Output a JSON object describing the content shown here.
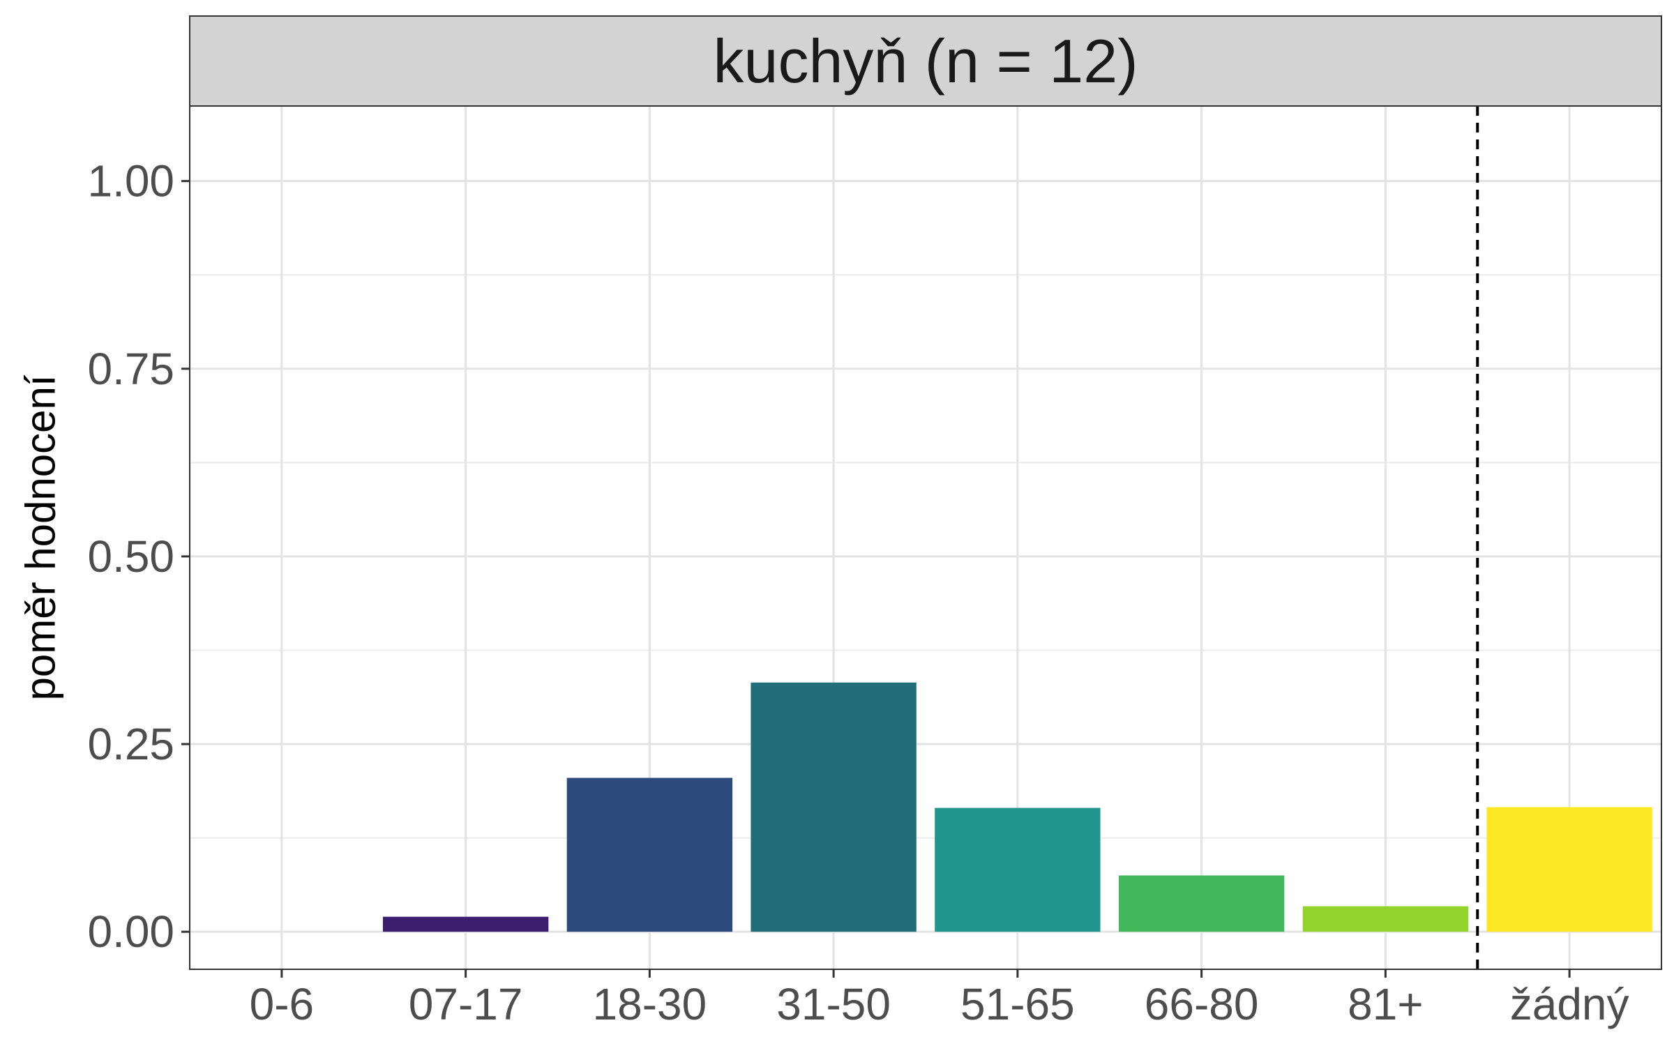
{
  "chart_data": {
    "type": "bar",
    "facet_title": "kuchyň (n = 12)",
    "xlabel": "",
    "ylabel": "poměr hodnocení",
    "categories": [
      "0-6",
      "07-17",
      "18-30",
      "31-50",
      "51-65",
      "66-80",
      "81+",
      "žádný"
    ],
    "values": [
      0.0,
      0.02,
      0.205,
      0.332,
      0.165,
      0.075,
      0.034,
      0.166
    ],
    "colors": [
      "#440154",
      "#3b1f6e",
      "#2c4a7c",
      "#216e7a",
      "#22958f",
      "#42b85a",
      "#93d32e",
      "#fde725"
    ],
    "ylim": [
      -0.05,
      1.1
    ],
    "yticks": [
      0.0,
      0.25,
      0.5,
      0.75,
      1.0
    ],
    "ytick_labels": [
      "0.00",
      "0.25",
      "0.50",
      "0.75",
      "1.00"
    ],
    "grid": true,
    "reference_line": {
      "style": "dashed",
      "between": [
        "81+",
        "žádný"
      ]
    }
  }
}
